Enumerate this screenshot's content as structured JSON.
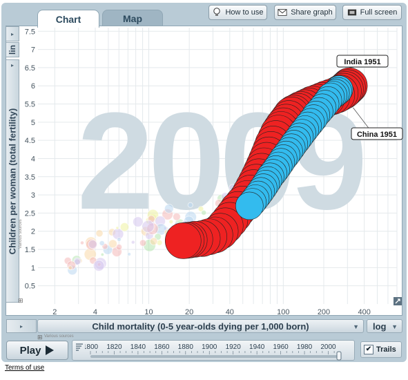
{
  "tabs": [
    {
      "label": "Chart",
      "active": true
    },
    {
      "label": "Map",
      "active": false
    }
  ],
  "toolbar": {
    "how_to_use": "How to use",
    "share_graph": "Share graph",
    "full_screen": "Full screen"
  },
  "y_axis_scale": "lin",
  "x_axis_scale": "log",
  "y_axis_source": "Various sources",
  "x_axis_source": "Various sources",
  "play_label": "Play",
  "trails_label": "Trails",
  "trails_checked": true,
  "terms_label": "Terms of use",
  "colors": {
    "india": "#ee2222",
    "china": "#33bbee",
    "year_watermark": "#cfdbe2"
  },
  "timeline": {
    "ticks": [
      "1800",
      "1820",
      "1840",
      "1860",
      "1880",
      "1900",
      "1920",
      "1940",
      "1960",
      "1980",
      "2000"
    ],
    "current_year": 2009
  },
  "chart_data": {
    "type": "scatter",
    "title": "",
    "year_watermark": "2009",
    "xlabel": "Child mortality (0-5 year-olds dying per 1,000 born)",
    "ylabel": "Children per woman (total fertility)",
    "x_scale": "log",
    "y_scale": "linear",
    "xlim": [
      1.5,
      700
    ],
    "ylim": [
      0,
      7.6
    ],
    "x_ticks": [
      2,
      4,
      10,
      20,
      40,
      100,
      200,
      400
    ],
    "y_ticks": [
      "0.5",
      "1",
      "1.5",
      "2",
      "2.5",
      "3",
      "3.5",
      "4",
      "4.5",
      "5",
      "5.5",
      "6",
      "6.5",
      "7",
      "7.5"
    ],
    "labels": [
      {
        "text": "India 1951",
        "x": 310,
        "y": 6.5
      },
      {
        "text": "China 1951",
        "x": 330,
        "y": 5.4
      }
    ],
    "series": [
      {
        "name": "India",
        "color": "#ee2222",
        "points": [
          [
            310,
            6.0
          ],
          [
            300,
            5.95
          ],
          [
            290,
            5.9
          ],
          [
            280,
            5.85
          ],
          [
            265,
            5.8
          ],
          [
            250,
            5.75
          ],
          [
            230,
            5.7
          ],
          [
            210,
            5.65
          ],
          [
            195,
            5.6
          ],
          [
            180,
            5.55
          ],
          [
            165,
            5.5
          ],
          [
            155,
            5.45
          ],
          [
            145,
            5.4
          ],
          [
            135,
            5.35
          ],
          [
            128,
            5.3
          ],
          [
            120,
            5.25
          ],
          [
            115,
            5.2
          ],
          [
            110,
            5.1
          ],
          [
            105,
            5.0
          ],
          [
            100,
            4.9
          ],
          [
            96,
            4.8
          ],
          [
            92,
            4.7
          ],
          [
            88,
            4.55
          ],
          [
            84,
            4.4
          ],
          [
            81,
            4.25
          ],
          [
            78,
            4.1
          ],
          [
            75,
            3.95
          ],
          [
            72,
            3.8
          ],
          [
            69,
            3.65
          ],
          [
            66,
            3.5
          ],
          [
            63,
            3.35
          ],
          [
            60,
            3.2
          ],
          [
            57,
            3.05
          ],
          [
            54,
            2.9
          ],
          [
            50,
            2.75
          ],
          [
            46,
            2.6
          ],
          [
            43,
            2.45
          ],
          [
            40,
            2.3
          ],
          [
            37,
            2.15
          ],
          [
            34,
            2.0
          ],
          [
            31,
            1.9
          ],
          [
            28,
            1.85
          ],
          [
            25,
            1.8
          ],
          [
            22,
            1.78
          ],
          [
            20,
            1.76
          ],
          [
            19,
            1.75
          ],
          [
            18,
            1.74
          ]
        ]
      },
      {
        "name": "China",
        "color": "#33bbee",
        "points": [
          [
            260,
            5.9
          ],
          [
            255,
            5.85
          ],
          [
            245,
            5.8
          ],
          [
            235,
            5.75
          ],
          [
            225,
            5.7
          ],
          [
            215,
            5.6
          ],
          [
            205,
            5.5
          ],
          [
            195,
            5.4
          ],
          [
            185,
            5.3
          ],
          [
            175,
            5.2
          ],
          [
            168,
            5.1
          ],
          [
            160,
            5.0
          ],
          [
            152,
            4.9
          ],
          [
            145,
            4.8
          ],
          [
            138,
            4.7
          ],
          [
            132,
            4.6
          ],
          [
            126,
            4.5
          ],
          [
            120,
            4.4
          ],
          [
            115,
            4.3
          ],
          [
            110,
            4.2
          ],
          [
            105,
            4.1
          ],
          [
            100,
            4.0
          ],
          [
            96,
            3.9
          ],
          [
            92,
            3.8
          ],
          [
            88,
            3.7
          ],
          [
            84,
            3.6
          ],
          [
            80,
            3.5
          ],
          [
            77,
            3.4
          ],
          [
            74,
            3.3
          ],
          [
            71,
            3.2
          ],
          [
            68,
            3.1
          ],
          [
            65,
            3.0
          ],
          [
            62,
            2.9
          ],
          [
            59,
            2.8
          ],
          [
            56,
            2.7
          ]
        ]
      }
    ]
  }
}
